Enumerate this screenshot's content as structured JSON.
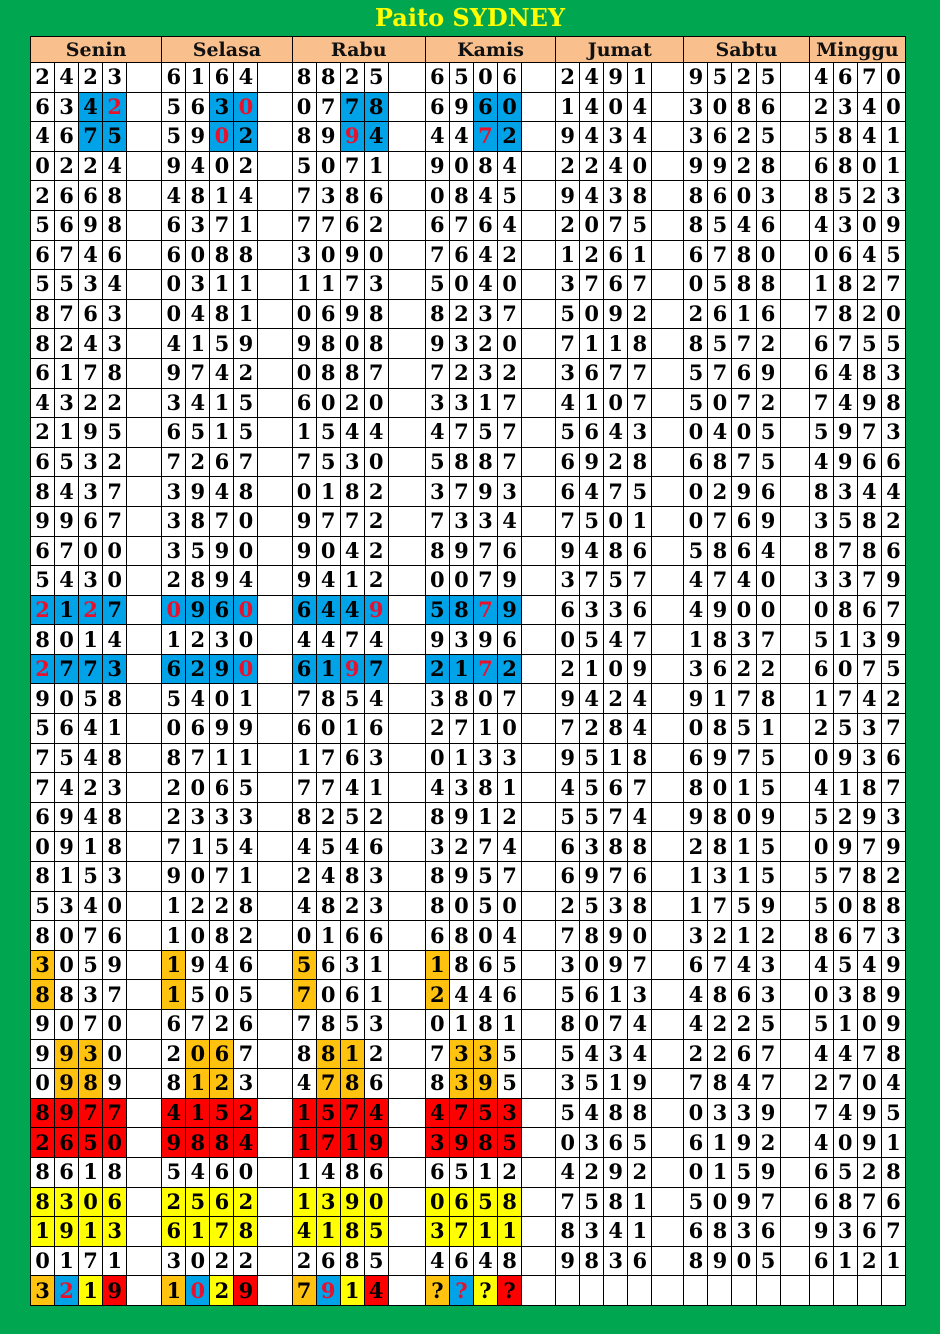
{
  "title": "Paito SYDNEY",
  "days": [
    "Senin",
    "Selasa",
    "Rabu",
    "Kamis",
    "Jumat",
    "Sabtu",
    "Minggu"
  ],
  "colors": {
    "background": "#00a650",
    "title": "#ffff00",
    "header": "#f9c08e",
    "blue": "#00a2e8",
    "red_digit": "#e8112d",
    "orange": "#ffc20e",
    "red": "#ff0000",
    "yellow": "#ffff00"
  },
  "style_legend": {
    ".": "plain",
    "b": "blue background",
    "B": "blue background, red digit",
    "o": "orange background",
    "r": "red background",
    "y": "yellow background"
  },
  "rows": [
    [
      "2423",
      "6164",
      "8825",
      "6506",
      "2491",
      "9525",
      "4670"
    ],
    [
      "6342",
      "5630",
      "0778",
      "6960",
      "1404",
      "3086",
      "2340"
    ],
    [
      "4675",
      "5902",
      "8994",
      "4472",
      "9434",
      "3625",
      "5841"
    ],
    [
      "0224",
      "9402",
      "5071",
      "9084",
      "2240",
      "9928",
      "6801"
    ],
    [
      "2668",
      "4814",
      "7386",
      "0845",
      "9438",
      "8603",
      "8523"
    ],
    [
      "5698",
      "6371",
      "7762",
      "6764",
      "2075",
      "8546",
      "4309"
    ],
    [
      "6746",
      "6088",
      "3090",
      "7642",
      "1261",
      "6780",
      "0645"
    ],
    [
      "5534",
      "0311",
      "1173",
      "5040",
      "3767",
      "0588",
      "1827"
    ],
    [
      "8763",
      "0481",
      "0698",
      "8237",
      "5092",
      "2616",
      "7820"
    ],
    [
      "8243",
      "4159",
      "9808",
      "9320",
      "7118",
      "8572",
      "6755"
    ],
    [
      "6178",
      "9742",
      "0887",
      "7232",
      "3677",
      "5769",
      "6483"
    ],
    [
      "4322",
      "3415",
      "6020",
      "3317",
      "4107",
      "5072",
      "7498"
    ],
    [
      "2195",
      "6515",
      "1544",
      "4757",
      "5643",
      "0405",
      "5973"
    ],
    [
      "6532",
      "7267",
      "7530",
      "5887",
      "6928",
      "6875",
      "4966"
    ],
    [
      "8437",
      "3948",
      "0182",
      "3793",
      "6475",
      "0296",
      "8344"
    ],
    [
      "9967",
      "3870",
      "9772",
      "7334",
      "7501",
      "0769",
      "3582"
    ],
    [
      "6700",
      "3590",
      "9042",
      "8976",
      "9486",
      "5864",
      "8786"
    ],
    [
      "5430",
      "2894",
      "9412",
      "0079",
      "3757",
      "4740",
      "3379"
    ],
    [
      "2127",
      "0960",
      "6449",
      "5879",
      "6336",
      "4900",
      "0867"
    ],
    [
      "8014",
      "1230",
      "4474",
      "9396",
      "0547",
      "1837",
      "5139"
    ],
    [
      "2773",
      "6290",
      "6197",
      "2172",
      "2109",
      "3622",
      "6075"
    ],
    [
      "9058",
      "5401",
      "7854",
      "3807",
      "9424",
      "9178",
      "1742"
    ],
    [
      "5641",
      "0699",
      "6016",
      "2710",
      "7284",
      "0851",
      "2537"
    ],
    [
      "7548",
      "8711",
      "1763",
      "0133",
      "9518",
      "6975",
      "0936"
    ],
    [
      "7423",
      "2065",
      "7741",
      "4381",
      "4567",
      "8015",
      "4187"
    ],
    [
      "6948",
      "2333",
      "8252",
      "8912",
      "5574",
      "9809",
      "5293"
    ],
    [
      "0918",
      "7154",
      "4546",
      "3274",
      "6388",
      "2815",
      "0979"
    ],
    [
      "8153",
      "9071",
      "2483",
      "8957",
      "6976",
      "1315",
      "5782"
    ],
    [
      "5340",
      "1228",
      "4823",
      "8050",
      "2538",
      "1759",
      "5088"
    ],
    [
      "8076",
      "1082",
      "0166",
      "6804",
      "7890",
      "3212",
      "8673"
    ],
    [
      "3059",
      "1946",
      "5631",
      "1865",
      "3097",
      "6743",
      "4549"
    ],
    [
      "8837",
      "1505",
      "7061",
      "2446",
      "5613",
      "4863",
      "0389"
    ],
    [
      "9070",
      "6726",
      "7853",
      "0181",
      "8074",
      "4225",
      "5109"
    ],
    [
      "9930",
      "2067",
      "8812",
      "7335",
      "5434",
      "2267",
      "4478"
    ],
    [
      "0989",
      "8123",
      "4786",
      "8395",
      "3519",
      "7847",
      "2704"
    ],
    [
      "8977",
      "4152",
      "1574",
      "4753",
      "5488",
      "0339",
      "7495"
    ],
    [
      "2650",
      "9884",
      "1719",
      "3985",
      "0365",
      "6192",
      "4091"
    ],
    [
      "8618",
      "5460",
      "1486",
      "6512",
      "4292",
      "0159",
      "6528"
    ],
    [
      "8306",
      "2562",
      "1390",
      "0658",
      "7581",
      "5097",
      "6876"
    ],
    [
      "1913",
      "6178",
      "4185",
      "3711",
      "8341",
      "6836",
      "9367"
    ],
    [
      "0171",
      "3022",
      "2685",
      "4648",
      "9836",
      "8905",
      "6121"
    ],
    [
      "3219",
      "1029",
      "7914",
      "????",
      "",
      "",
      ""
    ]
  ],
  "styles": {
    "1": [
      "..bB",
      "..bB",
      "..bb",
      "..bb"
    ],
    "2": [
      "..bb",
      "..Bb",
      "..Bb",
      "..Bb"
    ],
    "18": [
      "BbBb",
      "BbbB",
      "bbbB",
      "bbBb"
    ],
    "20": [
      "Bbbb",
      "bbbB",
      "bbBb",
      "bbBb"
    ],
    "30": [
      "o...",
      "o...",
      "o...",
      "o..."
    ],
    "31": [
      "o...",
      "o...",
      "o...",
      "o..."
    ],
    "33": [
      ".oo.",
      ".oo.",
      ".oo.",
      ".oo."
    ],
    "34": [
      ".oo.",
      ".oo.",
      ".oo.",
      ".oo."
    ],
    "35": [
      "rrrr",
      "rrrr",
      "rrrr",
      "rrrr"
    ],
    "36": [
      "rrrr",
      "rrrr",
      "rrrr",
      "rrrr"
    ],
    "38": [
      "yyyy",
      "yyyy",
      "yyyy",
      "yyyy"
    ],
    "39": [
      "yyyy",
      "yyyy",
      "yyyy",
      "yyyy"
    ],
    "41": [
      "oByr",
      "oByr",
      "oByr",
      "oByr"
    ]
  }
}
